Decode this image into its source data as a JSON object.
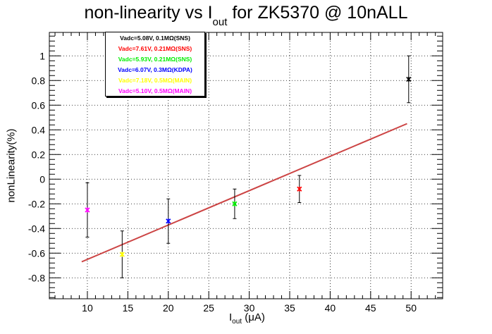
{
  "title": {
    "main": "non-linearity vs I",
    "sub": "out",
    "suffix": " for ZK5370 @ 10nALL"
  },
  "xlabel": {
    "main": "I",
    "sub": "out",
    "suffix": " (μA)"
  },
  "ylabel": "nonLinearity(%)",
  "legend": [
    {
      "label": "Vadc=5.08V, 0.1MΩ(SNS)",
      "color": "#000000"
    },
    {
      "label": "Vadc=7.61V, 0.21MΩ(SNS)",
      "color": "#ff0000"
    },
    {
      "label": "Vadc=5.93V, 0.21MΩ(SNS)",
      "color": "#00ee00"
    },
    {
      "label": "Vadc=6.07V, 0.3MΩ(KDPA)",
      "color": "#0000ff"
    },
    {
      "label": "Vadc=7.18V, 0.5MΩ(MAIN)",
      "color": "#ffff00"
    },
    {
      "label": "Vadc=5.10V, 0.5MΩ(MAIN)",
      "color": "#ff00ff"
    }
  ],
  "chart_data": {
    "type": "scatter",
    "xlim": [
      5.3,
      53.9
    ],
    "ylim": [
      -0.97,
      1.19
    ],
    "x_ticks": [
      10,
      15,
      20,
      25,
      30,
      35,
      40,
      45,
      50
    ],
    "y_ticks": [
      -0.8,
      -0.6,
      -0.4,
      -0.2,
      0,
      0.2,
      0.4,
      0.6,
      0.8,
      1
    ],
    "grid": true,
    "legend_position": "top-left",
    "series": [
      {
        "name": "Vadc=5.08V, 0.1MΩ(SNS)",
        "color": "#000000",
        "points": [
          {
            "x": 49.7,
            "y": 0.81,
            "err": 0.19
          }
        ]
      },
      {
        "name": "Vadc=7.61V, 0.21MΩ(SNS)",
        "color": "#ff0000",
        "points": [
          {
            "x": 36.2,
            "y": -0.08,
            "err": 0.11
          }
        ]
      },
      {
        "name": "Vadc=5.93V, 0.21MΩ(SNS)",
        "color": "#00ee00",
        "points": [
          {
            "x": 28.2,
            "y": -0.2,
            "err": 0.12
          }
        ]
      },
      {
        "name": "Vadc=6.07V, 0.3MΩ(KDPA)",
        "color": "#0000ff",
        "points": [
          {
            "x": 20.0,
            "y": -0.34,
            "err": 0.18
          }
        ]
      },
      {
        "name": "Vadc=7.18V, 0.5MΩ(MAIN)",
        "color": "#ffff00",
        "points": [
          {
            "x": 14.3,
            "y": -0.61,
            "err": 0.19
          }
        ]
      },
      {
        "name": "Vadc=5.10V, 0.5MΩ(MAIN)",
        "color": "#ff00ff",
        "points": [
          {
            "x": 10.0,
            "y": -0.25,
            "err": 0.22
          }
        ]
      }
    ],
    "fit": {
      "color": "#cc4444",
      "from": [
        9.3,
        -0.67
      ],
      "to": [
        49.5,
        0.45
      ]
    }
  }
}
